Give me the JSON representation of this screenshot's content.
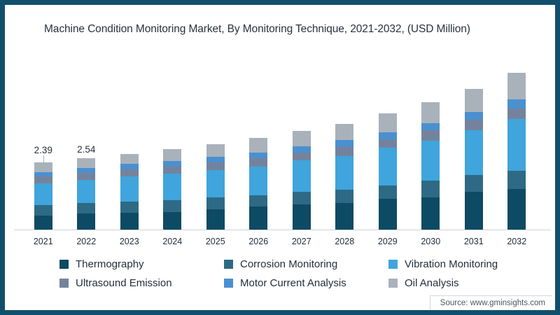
{
  "frame": {
    "border_color": "#11506c",
    "background": "#ffffff"
  },
  "chart_data": {
    "type": "bar",
    "stacked": true,
    "title": "Machine Condition Monitoring Market, By Monitoring Technique, 2021-2032, (USD Million)",
    "categories": [
      "2021",
      "2022",
      "2023",
      "2024",
      "2025",
      "2026",
      "2027",
      "2028",
      "2029",
      "2030",
      "2031",
      "2032"
    ],
    "series": [
      {
        "name": "Thermography",
        "color": "#0d4a63",
        "values": [
          0.51,
          0.57,
          0.6,
          0.63,
          0.72,
          0.82,
          0.9,
          0.96,
          1.1,
          1.16,
          1.34,
          1.46
        ]
      },
      {
        "name": "Corrosion Monitoring",
        "color": "#2e6a85",
        "values": [
          0.36,
          0.38,
          0.4,
          0.42,
          0.42,
          0.4,
          0.45,
          0.47,
          0.47,
          0.6,
          0.6,
          0.65
        ]
      },
      {
        "name": "Vibration Monitoring",
        "color": "#3fa5dc",
        "values": [
          0.79,
          0.83,
          0.9,
          0.95,
          0.99,
          1.04,
          1.12,
          1.2,
          1.36,
          1.42,
          1.6,
          1.83
        ]
      },
      {
        "name": "Ultrasound Emission",
        "color": "#74839d",
        "values": [
          0.23,
          0.25,
          0.26,
          0.26,
          0.26,
          0.28,
          0.29,
          0.32,
          0.3,
          0.36,
          0.39,
          0.38
        ]
      },
      {
        "name": "Motor Current Analysis",
        "color": "#4a90d0",
        "values": [
          0.17,
          0.18,
          0.18,
          0.2,
          0.2,
          0.21,
          0.22,
          0.25,
          0.25,
          0.26,
          0.26,
          0.32
        ]
      },
      {
        "name": "Oil Analysis",
        "color": "#a9b2bb",
        "values": [
          0.33,
          0.33,
          0.35,
          0.42,
          0.45,
          0.52,
          0.55,
          0.58,
          0.68,
          0.76,
          0.83,
          0.95
        ]
      }
    ],
    "totals": [
      2.39,
      2.54,
      2.69,
      2.88,
      3.04,
      3.27,
      3.53,
      3.78,
      4.16,
      4.56,
      5.02,
      5.59
    ],
    "data_labels": [
      {
        "category": "2021",
        "text": "2.39",
        "leader": true
      },
      {
        "category": "2022",
        "text": "2.54",
        "leader": false
      }
    ],
    "ylim": [
      0,
      5.6
    ],
    "grid": false,
    "legend_position": "bottom",
    "axis_line_color": "#ccd1d6",
    "text_color": "#222f3d"
  },
  "legend": {
    "items": [
      {
        "label": "Thermography",
        "color": "#0d4a63"
      },
      {
        "label": "Corrosion Monitoring",
        "color": "#2e6a85"
      },
      {
        "label": "Vibration Monitoring",
        "color": "#3fa5dc"
      },
      {
        "label": "Ultrasound Emission",
        "color": "#74839d"
      },
      {
        "label": "Motor Current Analysis",
        "color": "#4a90d0"
      },
      {
        "label": "Oil Analysis",
        "color": "#a9b2bb"
      }
    ]
  },
  "source": {
    "label": "Source: www.gminsights.com"
  }
}
